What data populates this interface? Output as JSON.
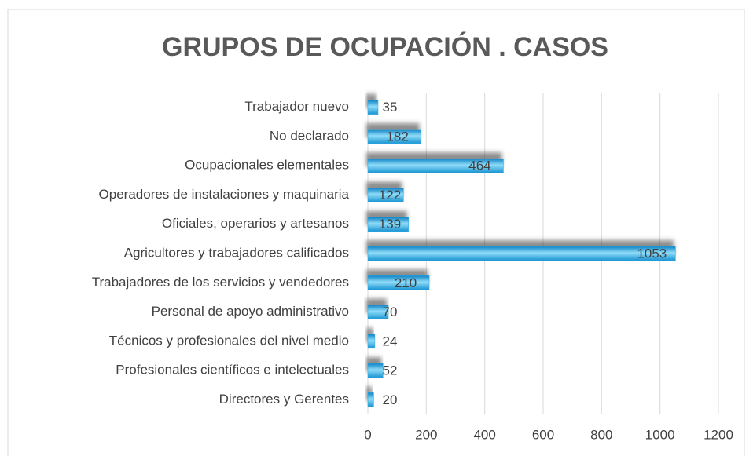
{
  "chart_data": {
    "type": "barh",
    "title": "GRUPOS DE OCUPACIÓN . CASOS",
    "categories": [
      "Trabajador nuevo",
      "No declarado",
      "Ocupacionales elementales",
      "Operadores de instalaciones y maquinaria",
      "Oficiales, operarios y artesanos",
      "Agricultores y trabajadores calificados",
      "Trabajadores de los servicios y vendedores",
      "Personal de apoyo administrativo",
      "Técnicos y profesionales del nivel medio",
      "Profesionales científicos e intelectuales",
      "Directores y Gerentes"
    ],
    "values": [
      35,
      182,
      464,
      122,
      139,
      1053,
      210,
      70,
      24,
      52,
      20
    ],
    "color": "#29a8e0",
    "xlim": [
      0,
      1200
    ],
    "xticks": [
      0,
      200,
      400,
      600,
      800,
      1000,
      1200
    ],
    "grid": true
  }
}
